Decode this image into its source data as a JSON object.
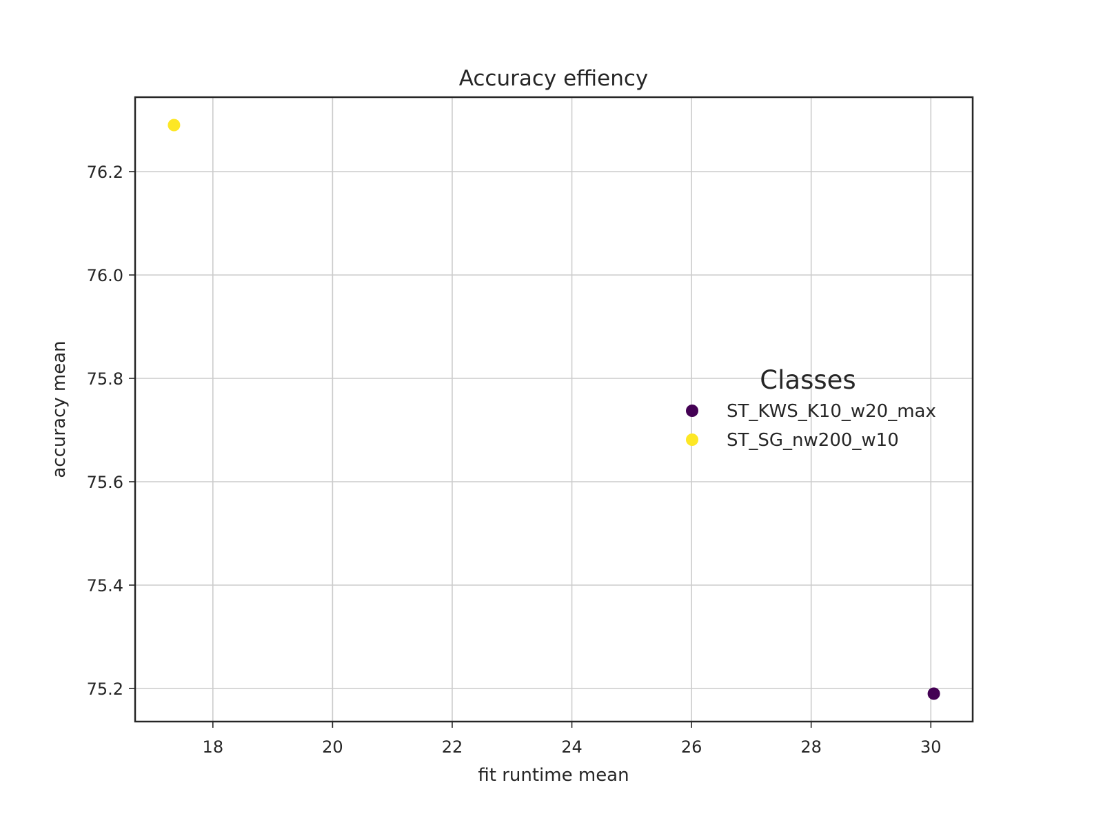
{
  "chart_data": {
    "type": "scatter",
    "title": "Accuracy effiency",
    "xlabel": "fit runtime mean",
    "ylabel": "accuracy mean",
    "xlim": [
      16.7,
      30.7
    ],
    "ylim": [
      75.136,
      76.344
    ],
    "xticks": [
      18,
      20,
      22,
      24,
      26,
      28,
      30
    ],
    "yticks": [
      75.2,
      75.4,
      75.6,
      75.8,
      76.0,
      76.2
    ],
    "xtick_labels": [
      "18",
      "20",
      "22",
      "24",
      "26",
      "28",
      "30"
    ],
    "ytick_labels": [
      "75.2",
      "75.4",
      "75.6",
      "75.8",
      "76.0",
      "76.2"
    ],
    "grid": true,
    "legend": {
      "title": "Classes",
      "placement": "center-right"
    },
    "series": [
      {
        "name": "ST_KWS_K10_w20_max",
        "color": "#440154",
        "points": [
          {
            "x": 30.05,
            "y": 75.19
          }
        ]
      },
      {
        "name": "ST_SG_nw200_w10",
        "color": "#fde725",
        "points": [
          {
            "x": 17.35,
            "y": 76.29
          }
        ]
      }
    ]
  }
}
